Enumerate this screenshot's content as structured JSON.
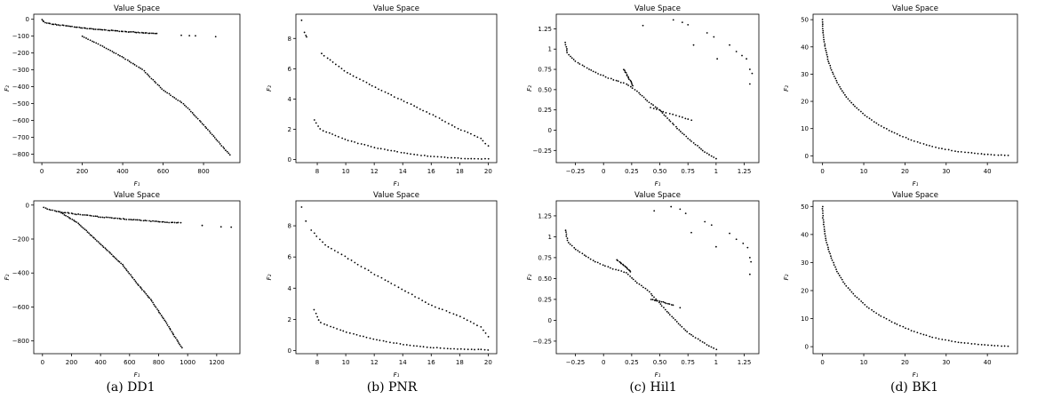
{
  "captions": [
    "(a) DD1",
    "(b) PNR",
    "(c) Hil1",
    "(d) BK1"
  ],
  "chart_data": [
    {
      "id": "dd1-top",
      "type": "scatter",
      "title": "Value Space",
      "xlabel": "F₁",
      "ylabel": "F₂",
      "xlim": [
        -40,
        980
      ],
      "ylim": [
        -850,
        30
      ],
      "xticks": [
        0,
        200,
        400,
        600,
        800
      ],
      "yticks": [
        0,
        -100,
        -200,
        -300,
        -400,
        -500,
        -600,
        -700,
        -800
      ],
      "curves": [
        {
          "kind": "poly",
          "n": 70,
          "jitter": 0.004,
          "pts": [
            [
              0,
              -2
            ],
            [
              3,
              -8
            ],
            [
              10,
              -15
            ],
            [
              30,
              -24
            ],
            [
              60,
              -30
            ],
            [
              100,
              -36
            ],
            [
              150,
              -43
            ],
            [
              250,
              -58
            ],
            [
              400,
              -72
            ],
            [
              570,
              -85
            ]
          ]
        },
        {
          "kind": "poly",
          "n": 90,
          "jitter": 0.003,
          "pts": [
            [
              200,
              -100
            ],
            [
              300,
              -160
            ],
            [
              400,
              -225
            ],
            [
              500,
              -300
            ],
            [
              600,
              -420
            ],
            [
              700,
              -500
            ],
            [
              800,
              -625
            ],
            [
              930,
              -805
            ]
          ]
        }
      ],
      "points": [
        [
          690,
          -95
        ],
        [
          730,
          -97
        ],
        [
          760,
          -98
        ],
        [
          860,
          -103
        ]
      ]
    },
    {
      "id": "pnr-top",
      "type": "scatter",
      "title": "Value Space",
      "xlabel": "F₁",
      "ylabel": "F₂",
      "xlim": [
        6.5,
        20.6
      ],
      "ylim": [
        -0.2,
        9.6
      ],
      "xticks": [
        8,
        10,
        12,
        14,
        16,
        18,
        20
      ],
      "yticks": [
        0,
        2,
        4,
        6,
        8
      ],
      "curves": [
        {
          "kind": "poly",
          "n": 55,
          "jitter": 0.004,
          "pts": [
            [
              8.3,
              7.0
            ],
            [
              10,
              5.8
            ],
            [
              12,
              4.8
            ],
            [
              14,
              3.9
            ],
            [
              16,
              3.0
            ],
            [
              18,
              2.0
            ],
            [
              19.5,
              1.4
            ],
            [
              20,
              0.9
            ]
          ]
        },
        {
          "kind": "poly",
          "n": 55,
          "jitter": 0.004,
          "pts": [
            [
              7.8,
              2.6
            ],
            [
              8.2,
              2.0
            ],
            [
              10,
              1.3
            ],
            [
              12,
              0.8
            ],
            [
              14,
              0.45
            ],
            [
              16,
              0.2
            ],
            [
              18,
              0.08
            ],
            [
              20,
              0.05
            ]
          ]
        }
      ],
      "points": [
        [
          6.9,
          9.2
        ],
        [
          7.1,
          8.4
        ],
        [
          7.2,
          8.2
        ],
        [
          7.25,
          8.1
        ]
      ]
    },
    {
      "id": "hil1-top",
      "type": "scatter",
      "title": "Value Space",
      "xlabel": "F₁",
      "ylabel": "F₂",
      "xlim": [
        -0.42,
        1.38
      ],
      "ylim": [
        -0.4,
        1.43
      ],
      "xticks": [
        -0.25,
        0,
        0.25,
        0.5,
        0.75,
        1.0,
        1.25
      ],
      "yticks": [
        -0.25,
        0,
        0.25,
        0.5,
        0.75,
        1.0,
        1.25
      ],
      "curves": [
        {
          "kind": "poly",
          "n": 80,
          "jitter": 0.004,
          "pts": [
            [
              -0.34,
              1.08
            ],
            [
              -0.32,
              0.95
            ],
            [
              -0.25,
              0.85
            ],
            [
              -0.1,
              0.73
            ],
            [
              0.05,
              0.64
            ],
            [
              0.2,
              0.57
            ],
            [
              0.3,
              0.48
            ],
            [
              0.4,
              0.35
            ],
            [
              0.5,
              0.25
            ],
            [
              0.6,
              0.1
            ],
            [
              0.75,
              -0.1
            ],
            [
              0.9,
              -0.27
            ],
            [
              1.0,
              -0.35
            ]
          ]
        },
        {
          "kind": "poly",
          "n": 14,
          "jitter": 0.004,
          "pts": [
            [
              0.18,
              0.75
            ],
            [
              0.22,
              0.65
            ],
            [
              0.26,
              0.55
            ]
          ]
        },
        {
          "kind": "poly",
          "n": 14,
          "jitter": 0.004,
          "pts": [
            [
              0.42,
              0.28
            ],
            [
              0.55,
              0.22
            ],
            [
              0.7,
              0.16
            ],
            [
              0.78,
              0.12
            ]
          ]
        }
      ],
      "points": [
        [
          0.35,
          1.29
        ],
        [
          0.62,
          1.36
        ],
        [
          0.7,
          1.33
        ],
        [
          0.75,
          1.3
        ],
        [
          0.8,
          1.05
        ],
        [
          0.92,
          1.2
        ],
        [
          0.98,
          1.15
        ],
        [
          1.01,
          0.88
        ],
        [
          1.12,
          1.05
        ],
        [
          1.18,
          0.97
        ],
        [
          1.23,
          0.92
        ],
        [
          1.27,
          0.88
        ],
        [
          1.3,
          0.75
        ],
        [
          1.32,
          0.7
        ],
        [
          1.3,
          0.57
        ]
      ]
    },
    {
      "id": "bk1-top",
      "type": "scatter",
      "title": "Value Space",
      "xlabel": "F₁",
      "ylabel": "F₂",
      "xlim": [
        -2.3,
        47.3
      ],
      "ylim": [
        -2.5,
        52
      ],
      "xticks": [
        0,
        10,
        20,
        30,
        40
      ],
      "yticks": [
        0,
        10,
        20,
        30,
        40,
        50
      ],
      "curves": [
        {
          "kind": "poly",
          "n": 95,
          "jitter": 0.003,
          "pts": [
            [
              0,
              50
            ],
            [
              0.1,
              46
            ],
            [
              0.4,
              42
            ],
            [
              1,
              37
            ],
            [
              2,
              32
            ],
            [
              3.5,
              27
            ],
            [
              5.5,
              22
            ],
            [
              8,
              18
            ],
            [
              11,
              14
            ],
            [
              14,
              11
            ],
            [
              18,
              8
            ],
            [
              22,
              5.5
            ],
            [
              27,
              3.2
            ],
            [
              33,
              1.5
            ],
            [
              40,
              0.5
            ],
            [
              45,
              0.1
            ]
          ]
        }
      ],
      "points": []
    },
    {
      "id": "dd1-bottom",
      "type": "scatter",
      "title": "Value Space",
      "xlabel": "F₁",
      "ylabel": "F₂",
      "xlim": [
        -60,
        1360
      ],
      "ylim": [
        -875,
        25
      ],
      "xticks": [
        0,
        200,
        400,
        600,
        800,
        1000,
        1200
      ],
      "yticks": [
        0,
        -200,
        -400,
        -600,
        -800
      ],
      "curves": [
        {
          "kind": "poly",
          "n": 75,
          "jitter": 0.004,
          "pts": [
            [
              10,
              -15
            ],
            [
              40,
              -25
            ],
            [
              100,
              -37
            ],
            [
              200,
              -50
            ],
            [
              400,
              -70
            ],
            [
              600,
              -85
            ],
            [
              800,
              -98
            ],
            [
              950,
              -105
            ]
          ]
        },
        {
          "kind": "poly",
          "n": 100,
          "jitter": 0.003,
          "pts": [
            [
              120,
              -40
            ],
            [
              250,
              -110
            ],
            [
              350,
              -190
            ],
            [
              450,
              -270
            ],
            [
              550,
              -350
            ],
            [
              650,
              -460
            ],
            [
              750,
              -560
            ],
            [
              850,
              -690
            ],
            [
              960,
              -840
            ]
          ]
        }
      ],
      "points": [
        [
          1100,
          -120
        ],
        [
          1230,
          -128
        ],
        [
          1300,
          -130
        ]
      ]
    },
    {
      "id": "pnr-bottom",
      "type": "scatter",
      "title": "Value Space",
      "xlabel": "F₁",
      "ylabel": "F₂",
      "xlim": [
        6.5,
        20.6
      ],
      "ylim": [
        -0.2,
        9.6
      ],
      "xticks": [
        8,
        10,
        12,
        14,
        16,
        18,
        20
      ],
      "yticks": [
        0,
        2,
        4,
        6,
        8
      ],
      "curves": [
        {
          "kind": "poly",
          "n": 55,
          "jitter": 0.004,
          "pts": [
            [
              7.6,
              7.7
            ],
            [
              8.5,
              6.8
            ],
            [
              10,
              6.0
            ],
            [
              12,
              4.9
            ],
            [
              14,
              3.9
            ],
            [
              16,
              2.9
            ],
            [
              18,
              2.2
            ],
            [
              19.5,
              1.5
            ],
            [
              20,
              0.9
            ]
          ]
        },
        {
          "kind": "poly",
          "n": 55,
          "jitter": 0.004,
          "pts": [
            [
              7.8,
              2.6
            ],
            [
              8.2,
              1.8
            ],
            [
              10,
              1.2
            ],
            [
              12,
              0.7
            ],
            [
              14,
              0.4
            ],
            [
              16,
              0.2
            ],
            [
              18,
              0.1
            ],
            [
              20,
              0.05
            ]
          ]
        }
      ],
      "points": [
        [
          6.9,
          9.2
        ],
        [
          7.2,
          8.3
        ]
      ]
    },
    {
      "id": "hil1-bottom",
      "type": "scatter",
      "title": "Value Space",
      "xlabel": "F₁",
      "ylabel": "F₂",
      "xlim": [
        -0.42,
        1.38
      ],
      "ylim": [
        -0.4,
        1.43
      ],
      "xticks": [
        -0.25,
        0,
        0.25,
        0.5,
        0.75,
        1.0,
        1.25
      ],
      "yticks": [
        -0.25,
        0,
        0.25,
        0.5,
        0.75,
        1.0,
        1.25
      ],
      "curves": [
        {
          "kind": "poly",
          "n": 80,
          "jitter": 0.004,
          "pts": [
            [
              -0.34,
              1.08
            ],
            [
              -0.32,
              0.95
            ],
            [
              -0.25,
              0.85
            ],
            [
              -0.1,
              0.72
            ],
            [
              0.05,
              0.63
            ],
            [
              0.2,
              0.57
            ],
            [
              0.3,
              0.45
            ],
            [
              0.4,
              0.35
            ],
            [
              0.5,
              0.2
            ],
            [
              0.6,
              0.05
            ],
            [
              0.75,
              -0.15
            ],
            [
              0.9,
              -0.28
            ],
            [
              1.0,
              -0.35
            ]
          ]
        },
        {
          "kind": "poly",
          "n": 14,
          "jitter": 0.004,
          "pts": [
            [
              0.12,
              0.72
            ],
            [
              0.18,
              0.66
            ],
            [
              0.24,
              0.58
            ]
          ]
        },
        {
          "kind": "poly",
          "n": 14,
          "jitter": 0.004,
          "pts": [
            [
              0.42,
              0.25
            ],
            [
              0.52,
              0.22
            ],
            [
              0.62,
              0.18
            ]
          ]
        }
      ],
      "points": [
        [
          0.45,
          1.31
        ],
        [
          0.6,
          1.36
        ],
        [
          0.68,
          1.33
        ],
        [
          0.73,
          1.28
        ],
        [
          0.78,
          1.05
        ],
        [
          0.9,
          1.18
        ],
        [
          0.96,
          1.14
        ],
        [
          1.0,
          0.88
        ],
        [
          1.12,
          1.04
        ],
        [
          1.18,
          0.97
        ],
        [
          1.24,
          0.92
        ],
        [
          1.28,
          0.87
        ],
        [
          1.3,
          0.75
        ],
        [
          1.31,
          0.7
        ],
        [
          1.3,
          0.55
        ],
        [
          0.68,
          0.15
        ]
      ]
    },
    {
      "id": "bk1-bottom",
      "type": "scatter",
      "title": "Value Space",
      "xlabel": "F₁",
      "ylabel": "F₂",
      "xlim": [
        -2.3,
        47.3
      ],
      "ylim": [
        -2.5,
        52
      ],
      "xticks": [
        0,
        10,
        20,
        30,
        40
      ],
      "yticks": [
        0,
        10,
        20,
        30,
        40,
        50
      ],
      "curves": [
        {
          "kind": "poly",
          "n": 95,
          "jitter": 0.003,
          "pts": [
            [
              0,
              50
            ],
            [
              0.1,
              46
            ],
            [
              0.4,
              42
            ],
            [
              1,
              37
            ],
            [
              2,
              32
            ],
            [
              3.5,
              27
            ],
            [
              5.5,
              22
            ],
            [
              8,
              18
            ],
            [
              11,
              14
            ],
            [
              14,
              11
            ],
            [
              18,
              8
            ],
            [
              22,
              5.5
            ],
            [
              27,
              3.2
            ],
            [
              33,
              1.5
            ],
            [
              40,
              0.5
            ],
            [
              45,
              0.1
            ]
          ]
        }
      ],
      "points": []
    }
  ]
}
